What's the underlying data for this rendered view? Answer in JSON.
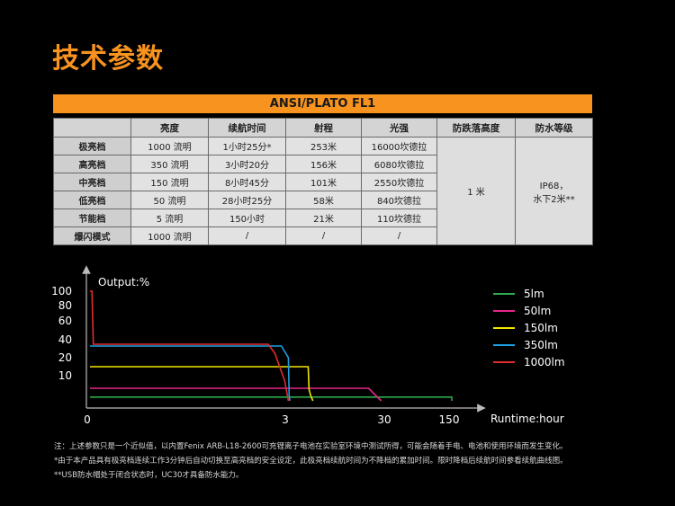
{
  "title": "技术参数",
  "banner": "ANSI/PLATO FL1",
  "table": {
    "headers": [
      "",
      "亮度",
      "续航时间",
      "射程",
      "光强",
      "防跌落高度",
      "防水等级"
    ],
    "rows": [
      {
        "mode": "极亮档",
        "brightness": "1000 流明",
        "runtime": "1小时25分*",
        "range": "253米",
        "intensity": "16000坎德拉"
      },
      {
        "mode": "高亮档",
        "brightness": "350 流明",
        "runtime": "3小时20分",
        "range": "156米",
        "intensity": "6080坎德拉"
      },
      {
        "mode": "中亮档",
        "brightness": "150 流明",
        "runtime": "8小时45分",
        "range": "101米",
        "intensity": "2550坎德拉"
      },
      {
        "mode": "低亮档",
        "brightness": "50 流明",
        "runtime": "28小时25分",
        "range": "58米",
        "intensity": "840坎德拉"
      },
      {
        "mode": "节能档",
        "brightness": "5 流明",
        "runtime": "150小时",
        "range": "21米",
        "intensity": "110坎德拉"
      },
      {
        "mode": "爆闪模式",
        "brightness": "1000 流明",
        "runtime": "/",
        "range": "/",
        "intensity": "/"
      }
    ],
    "drop_height": "1 米",
    "waterproof_line1": "IP68，",
    "waterproof_line2": "水下2米**"
  },
  "chart_data": {
    "type": "line",
    "ylabel": "Output:%",
    "xlabel": "Runtime:hour",
    "x_ticks": [
      "0",
      "3",
      "30",
      "150"
    ],
    "y_ticks": [
      "10",
      "20",
      "40",
      "60",
      "80",
      "100"
    ],
    "legend_position": "right",
    "series": [
      {
        "name": "5lm",
        "color": "#2eaa4a",
        "points": [
          [
            0,
            1.5
          ],
          [
            150,
            1.5
          ],
          [
            150,
            0
          ]
        ]
      },
      {
        "name": "50lm",
        "color": "#e8258a",
        "points": [
          [
            0,
            5
          ],
          [
            25,
            5
          ],
          [
            28.4,
            0
          ]
        ]
      },
      {
        "name": "150lm",
        "color": "#f2e600",
        "points": [
          [
            0,
            15
          ],
          [
            8.5,
            15
          ],
          [
            8.75,
            4.5
          ],
          [
            9.2,
            2
          ],
          [
            9.8,
            0
          ]
        ]
      },
      {
        "name": "350lm",
        "color": "#1d9fe0",
        "points": [
          [
            0,
            33
          ],
          [
            2.9,
            33
          ],
          [
            3.1,
            20
          ],
          [
            3.33,
            2
          ],
          [
            3.5,
            0
          ]
        ]
      },
      {
        "name": "1000lm",
        "color": "#e12c2c",
        "points": [
          [
            0,
            100
          ],
          [
            0.03,
            100
          ],
          [
            0.05,
            35
          ],
          [
            2.7,
            35
          ],
          [
            2.8,
            25
          ],
          [
            2.95,
            8
          ],
          [
            3.1,
            0
          ]
        ]
      }
    ]
  },
  "notes": [
    "注：上述参数只是一个近似值，以内置Fenix ARB-L18-2600可充锂离子电池在实验室环境中测试所得，可能会随着手电、电池和使用环境而发生变化。",
    "*由于本产品具有极亮档连续工作3分钟后自动切换至高亮档的安全设定，此极亮档续航时间为不降档的累加时间。限时降档后续航时间参看续航曲线图。",
    "**USB防水帽处于闭合状态时，UC30才具备防水能力。"
  ]
}
